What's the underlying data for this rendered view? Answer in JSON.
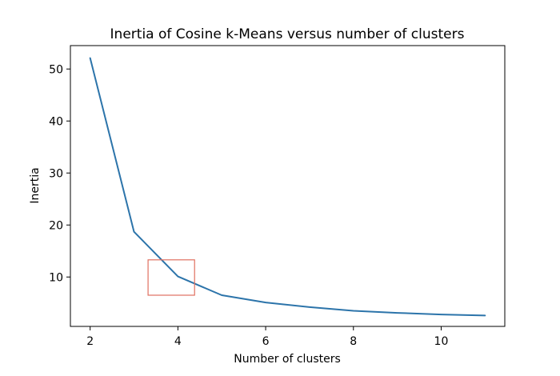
{
  "chart_data": {
    "type": "line",
    "title": "Inertia of Cosine k-Means versus number of clusters",
    "xlabel": "Number of clusters",
    "ylabel": "Inertia",
    "xlim": [
      1.55,
      11.45
    ],
    "ylim": [
      0.5,
      54.5
    ],
    "xticks": [
      2,
      4,
      6,
      8,
      10
    ],
    "yticks": [
      10,
      20,
      30,
      40,
      50
    ],
    "grid": false,
    "series": [
      {
        "color": "#2c74aa",
        "x": [
          2,
          3,
          4,
          5,
          6,
          7,
          8,
          9,
          10,
          11
        ],
        "y": [
          52.1,
          18.7,
          10.1,
          6.5,
          5.1,
          4.2,
          3.5,
          3.1,
          2.8,
          2.6
        ]
      }
    ],
    "annotations": [
      {
        "type": "rectangle",
        "color": "#e07060",
        "x": [
          3.32,
          4.38
        ],
        "y": [
          6.5,
          13.3
        ]
      }
    ]
  }
}
